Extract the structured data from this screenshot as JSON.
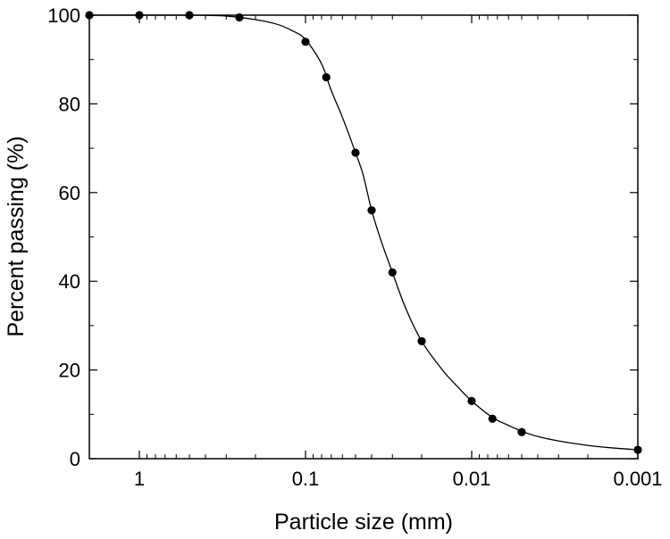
{
  "chart_data": {
    "type": "scatter",
    "title": "",
    "xlabel": "Particle size (mm)",
    "ylabel": "Percent passing (%)",
    "x_scale": "log",
    "x_reversed": true,
    "xlim": [
      2,
      0.001
    ],
    "ylim": [
      0,
      100
    ],
    "x_ticks": [
      {
        "value": 1,
        "label": "1"
      },
      {
        "value": 0.1,
        "label": "0.1"
      },
      {
        "value": 0.01,
        "label": "0.01"
      },
      {
        "value": 0.001,
        "label": "0.001"
      }
    ],
    "y_ticks": [
      {
        "value": 0,
        "label": "0"
      },
      {
        "value": 20,
        "label": "20"
      },
      {
        "value": 40,
        "label": "40"
      },
      {
        "value": 60,
        "label": "60"
      },
      {
        "value": 80,
        "label": "80"
      },
      {
        "value": 100,
        "label": "100"
      }
    ],
    "grid": false,
    "legend": "none",
    "series": [
      {
        "kind": "points",
        "color": "#000000",
        "points": [
          {
            "x": 2,
            "y": 100
          },
          {
            "x": 1,
            "y": 100
          },
          {
            "x": 0.5,
            "y": 100
          },
          {
            "x": 0.25,
            "y": 99.5
          },
          {
            "x": 0.1,
            "y": 94
          },
          {
            "x": 0.075,
            "y": 86
          },
          {
            "x": 0.05,
            "y": 69
          },
          {
            "x": 0.04,
            "y": 56
          },
          {
            "x": 0.03,
            "y": 42
          },
          {
            "x": 0.02,
            "y": 26.5
          },
          {
            "x": 0.01,
            "y": 13
          },
          {
            "x": 0.0075,
            "y": 9
          },
          {
            "x": 0.005,
            "y": 6
          },
          {
            "x": 0.001,
            "y": 2
          }
        ]
      },
      {
        "kind": "fitted-curve",
        "color": "#000000",
        "points": [
          {
            "x": 2,
            "y": 100
          },
          {
            "x": 0.5,
            "y": 100
          },
          {
            "x": 0.3,
            "y": 99.8
          },
          {
            "x": 0.2,
            "y": 99
          },
          {
            "x": 0.15,
            "y": 98
          },
          {
            "x": 0.12,
            "y": 96.5
          },
          {
            "x": 0.1,
            "y": 94.5
          },
          {
            "x": 0.08,
            "y": 89
          },
          {
            "x": 0.07,
            "y": 83
          },
          {
            "x": 0.06,
            "y": 77
          },
          {
            "x": 0.05,
            "y": 69
          },
          {
            "x": 0.045,
            "y": 64
          },
          {
            "x": 0.04,
            "y": 56
          },
          {
            "x": 0.035,
            "y": 49
          },
          {
            "x": 0.03,
            "y": 42
          },
          {
            "x": 0.025,
            "y": 34
          },
          {
            "x": 0.02,
            "y": 26.5
          },
          {
            "x": 0.015,
            "y": 20
          },
          {
            "x": 0.012,
            "y": 16
          },
          {
            "x": 0.01,
            "y": 13
          },
          {
            "x": 0.0075,
            "y": 9.3
          },
          {
            "x": 0.006,
            "y": 7.5
          },
          {
            "x": 0.005,
            "y": 6.2
          },
          {
            "x": 0.004,
            "y": 5
          },
          {
            "x": 0.003,
            "y": 4
          },
          {
            "x": 0.002,
            "y": 3
          },
          {
            "x": 0.0015,
            "y": 2.5
          },
          {
            "x": 0.001,
            "y": 2
          }
        ]
      }
    ]
  }
}
